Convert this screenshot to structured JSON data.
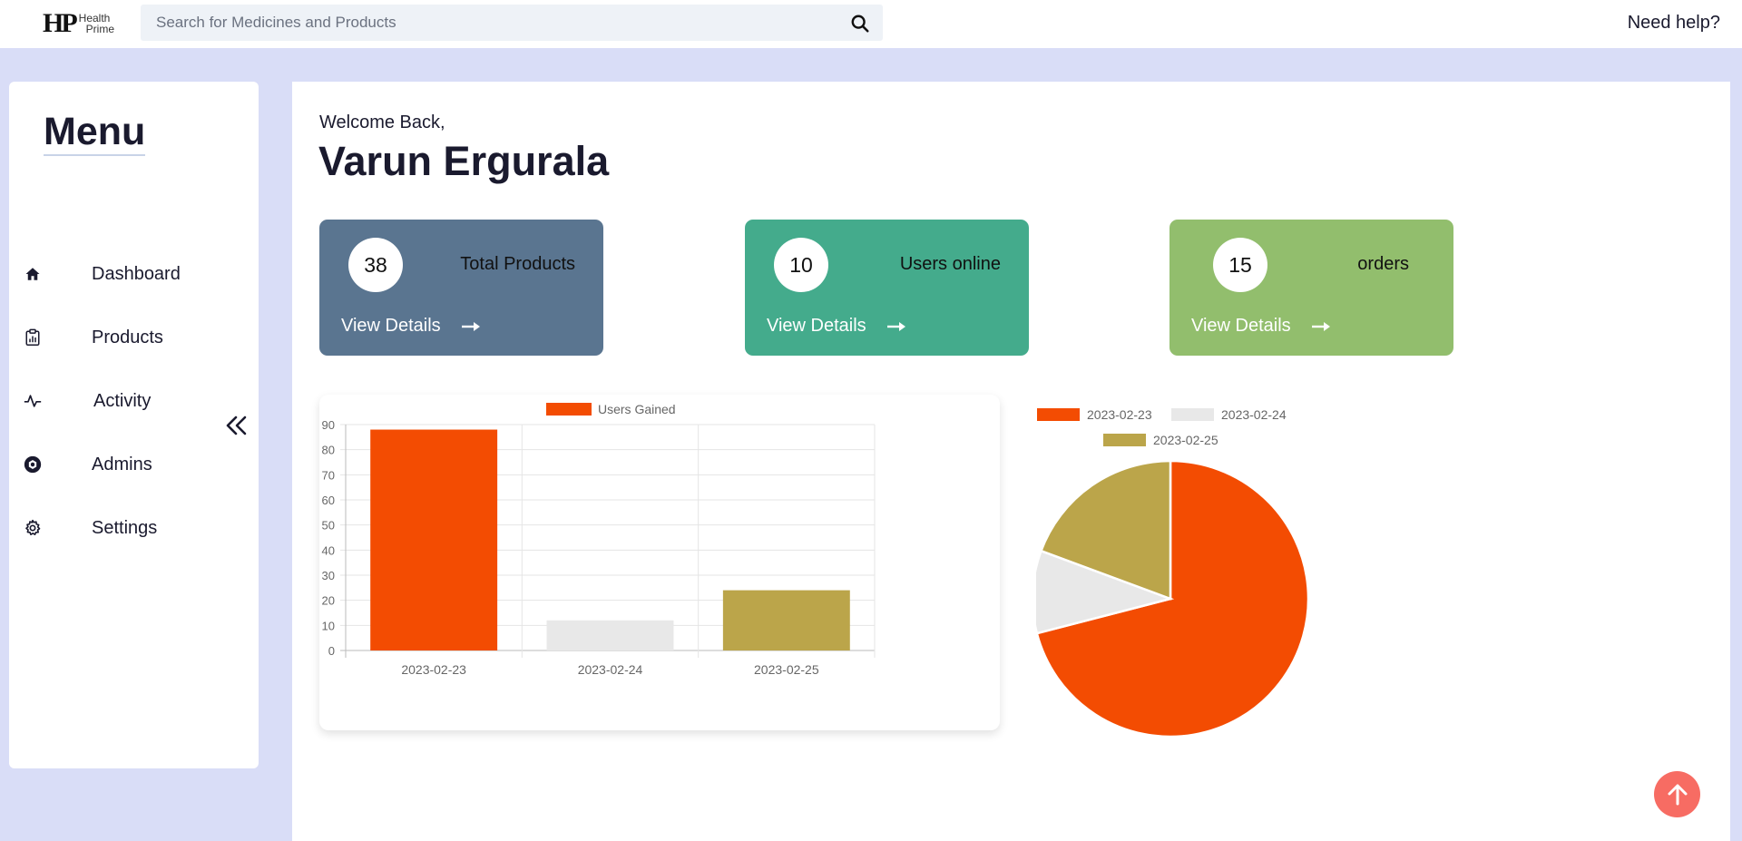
{
  "header": {
    "logo_mark": "HP",
    "logo_line1": "Health",
    "logo_line2": "Prime",
    "search_placeholder": "Search for Medicines and Products",
    "search_value": "",
    "help_label": "Need help?"
  },
  "sidebar": {
    "title": "Menu",
    "items": [
      {
        "label": "Dashboard",
        "icon": "home-icon"
      },
      {
        "label": "Products",
        "icon": "clipboard-chart-icon"
      },
      {
        "label": "Activity",
        "icon": "activity-pulse-icon"
      },
      {
        "label": "Admins",
        "icon": "admin-shield-icon"
      },
      {
        "label": "Settings",
        "icon": "gear-icon"
      }
    ],
    "collapse_icon": "double-chevron-left-icon"
  },
  "main": {
    "welcome": "Welcome Back,",
    "username": "Varun Ergurala",
    "cards": [
      {
        "value": "38",
        "title": "Total Products",
        "details": "View Details",
        "color": "#5a7590"
      },
      {
        "value": "10",
        "title": "Users online",
        "details": "View Details",
        "color": "#44ab8c"
      },
      {
        "value": "15",
        "title": "orders",
        "details": "View Details",
        "color": "#92be6d"
      }
    ]
  },
  "chart_data": [
    {
      "type": "bar",
      "categories": [
        "2023-02-23",
        "2023-02-24",
        "2023-02-25"
      ],
      "series": [
        {
          "name": "Users Gained",
          "values": [
            88,
            12,
            24
          ]
        }
      ],
      "colors": [
        "#f34c02",
        "#e8e8e8",
        "#bba54a"
      ],
      "legend_color": "#f34c02",
      "ylim": [
        0,
        90
      ],
      "yticks": [
        0,
        10,
        20,
        30,
        40,
        50,
        60,
        70,
        80,
        90
      ],
      "grid": true,
      "legend": "top"
    },
    {
      "type": "pie",
      "labels": [
        "2023-02-23",
        "2023-02-24",
        "2023-02-25"
      ],
      "values": [
        88,
        12,
        24
      ],
      "colors": [
        "#f34c02",
        "#e8e8e8",
        "#bba54a"
      ],
      "legend": "top"
    }
  ]
}
